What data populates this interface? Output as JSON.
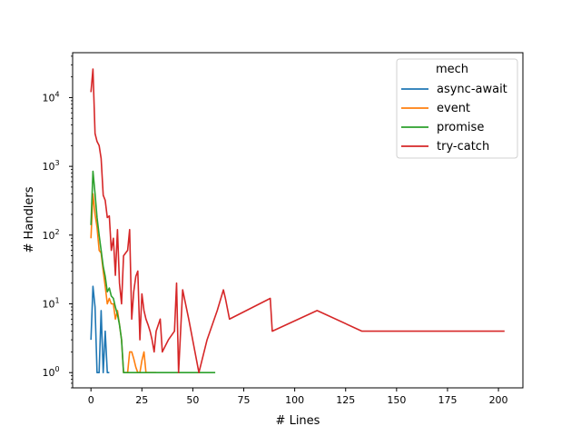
{
  "chart_data": {
    "type": "line",
    "title": "",
    "xlabel": "# Lines",
    "ylabel": "# Handlers",
    "yscale": "log",
    "xlim": [
      -9,
      212
    ],
    "ylim": [
      0.6,
      45000
    ],
    "xticks": [
      0,
      25,
      50,
      75,
      100,
      125,
      150,
      175,
      200
    ],
    "yticks": [
      {
        "value": 1,
        "label": "10^0"
      },
      {
        "value": 10,
        "label": "10^1"
      },
      {
        "value": 100,
        "label": "10^2"
      },
      {
        "value": 1000,
        "label": "10^3"
      },
      {
        "value": 10000,
        "label": "10^4"
      }
    ],
    "grid": false,
    "legend_title": "mech",
    "legend_position": "top-right",
    "series": [
      {
        "name": "async-await",
        "color": "#1f77b4",
        "x": [
          0,
          1,
          2,
          3,
          4,
          5,
          6,
          7,
          8,
          9
        ],
        "y": [
          3,
          18,
          9,
          1,
          1,
          8,
          1,
          4,
          1,
          1
        ]
      },
      {
        "name": "event",
        "color": "#ff7f0e",
        "x": [
          0,
          1,
          2,
          3,
          4,
          5,
          6,
          7,
          8,
          9,
          10,
          11,
          12,
          13,
          14,
          15,
          16,
          17,
          18,
          19,
          20,
          21,
          22,
          23,
          24,
          25,
          26,
          27,
          28,
          29,
          30,
          31,
          32
        ],
        "y": [
          90,
          400,
          200,
          130,
          60,
          55,
          30,
          18,
          10,
          12,
          10,
          10,
          6,
          8,
          5,
          3,
          1,
          1,
          1,
          2,
          2,
          1.6,
          1.2,
          1,
          1,
          1.5,
          2,
          1,
          1,
          1,
          1,
          1,
          1
        ]
      },
      {
        "name": "promise",
        "color": "#2ca02c",
        "x": [
          0,
          1,
          2,
          3,
          4,
          5,
          6,
          7,
          8,
          9,
          10,
          11,
          12,
          13,
          14,
          15,
          16,
          17,
          18,
          19,
          20,
          22,
          25,
          30,
          35,
          40,
          45,
          50,
          55,
          60,
          61
        ],
        "y": [
          140,
          850,
          400,
          180,
          100,
          60,
          35,
          25,
          15,
          17,
          13,
          12,
          9,
          7,
          5,
          3,
          1,
          1,
          1,
          1,
          1,
          1,
          1,
          1,
          1,
          1,
          1,
          1,
          1,
          1,
          1
        ]
      },
      {
        "name": "try-catch",
        "color": "#d62728",
        "x": [
          0,
          1,
          2,
          3,
          4,
          5,
          6,
          7,
          8,
          9,
          10,
          11,
          12,
          13,
          14,
          15,
          16,
          17,
          18,
          19,
          20,
          21,
          22,
          23,
          24,
          25,
          26,
          27,
          28,
          29,
          30,
          31,
          32,
          34,
          35,
          38,
          41,
          42,
          43,
          45,
          48,
          53,
          57,
          62,
          65,
          66,
          68,
          88,
          89,
          111,
          133,
          150,
          175,
          203
        ],
        "y": [
          12000,
          26000,
          3000,
          2300,
          2000,
          1300,
          380,
          320,
          180,
          190,
          60,
          90,
          26,
          120,
          20,
          10,
          50,
          55,
          60,
          120,
          6,
          15,
          25,
          30,
          3,
          14,
          8,
          6,
          5,
          4,
          3,
          2,
          4,
          6,
          2,
          3,
          4,
          20,
          1,
          16,
          6,
          1,
          3,
          8,
          16,
          12,
          6,
          12,
          4,
          8,
          4,
          4,
          4,
          4
        ]
      }
    ]
  }
}
